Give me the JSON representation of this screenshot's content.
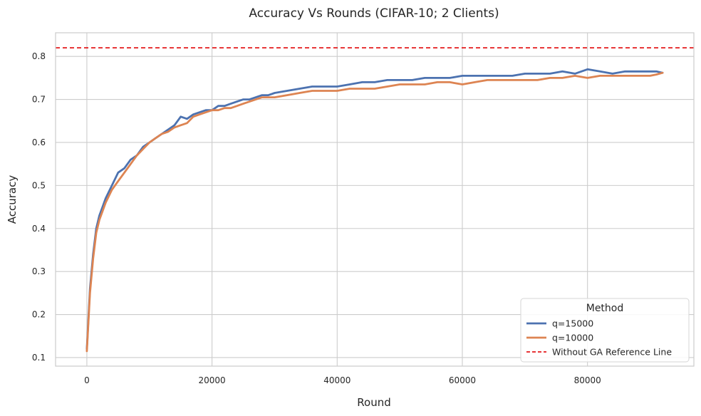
{
  "chart_data": {
    "type": "line",
    "title": "Accuracy Vs Rounds (CIFAR-10; 2 Clients)",
    "xlabel": "Round",
    "ylabel": "Accuracy",
    "xlim": [
      -5000,
      97000
    ],
    "ylim": [
      0.08,
      0.855
    ],
    "xticks": [
      0,
      20000,
      40000,
      60000,
      80000
    ],
    "yticks": [
      0.1,
      0.2,
      0.3,
      0.4,
      0.5,
      0.6,
      0.7,
      0.8
    ],
    "xtick_labels": [
      "0",
      "20000",
      "40000",
      "60000",
      "80000"
    ],
    "ytick_labels": [
      "0.1",
      "0.2",
      "0.3",
      "0.4",
      "0.5",
      "0.6",
      "0.7",
      "0.8"
    ],
    "grid": true,
    "legend": {
      "title": "Method",
      "position": "lower-right"
    },
    "reference_line": {
      "name": "Without GA Reference Line",
      "y": 0.82,
      "color": "#e41a1c",
      "style": "dashed"
    },
    "series": [
      {
        "name": "q=15000",
        "color": "#4c72b0",
        "x": [
          0,
          500,
          1000,
          1500,
          2000,
          2500,
          3000,
          4000,
          5000,
          6000,
          7000,
          8000,
          9000,
          10000,
          11000,
          12000,
          13000,
          14000,
          15000,
          16000,
          17000,
          18000,
          19000,
          20000,
          21000,
          22000,
          23000,
          24000,
          25000,
          26000,
          27000,
          28000,
          29000,
          30000,
          32000,
          34000,
          36000,
          38000,
          40000,
          42000,
          44000,
          46000,
          48000,
          50000,
          52000,
          54000,
          56000,
          58000,
          60000,
          62000,
          64000,
          66000,
          68000,
          70000,
          72000,
          74000,
          76000,
          78000,
          80000,
          82000,
          84000,
          86000,
          88000,
          90000,
          91000,
          92000
        ],
        "values": [
          0.12,
          0.26,
          0.34,
          0.4,
          0.43,
          0.45,
          0.47,
          0.5,
          0.53,
          0.54,
          0.56,
          0.57,
          0.59,
          0.6,
          0.61,
          0.62,
          0.63,
          0.64,
          0.66,
          0.655,
          0.665,
          0.67,
          0.675,
          0.675,
          0.685,
          0.685,
          0.69,
          0.695,
          0.7,
          0.7,
          0.705,
          0.71,
          0.71,
          0.715,
          0.72,
          0.725,
          0.73,
          0.73,
          0.73,
          0.735,
          0.74,
          0.74,
          0.745,
          0.745,
          0.745,
          0.75,
          0.75,
          0.75,
          0.755,
          0.755,
          0.755,
          0.755,
          0.755,
          0.76,
          0.76,
          0.76,
          0.765,
          0.76,
          0.77,
          0.765,
          0.76,
          0.765,
          0.765,
          0.765,
          0.765,
          0.762
        ]
      },
      {
        "name": "q=10000",
        "color": "#dd8452",
        "x": [
          0,
          500,
          1000,
          1500,
          2000,
          2500,
          3000,
          4000,
          5000,
          6000,
          7000,
          8000,
          9000,
          10000,
          11000,
          12000,
          13000,
          14000,
          15000,
          16000,
          17000,
          18000,
          19000,
          20000,
          21000,
          22000,
          23000,
          24000,
          25000,
          26000,
          27000,
          28000,
          29000,
          30000,
          32000,
          34000,
          36000,
          38000,
          40000,
          42000,
          44000,
          46000,
          48000,
          50000,
          52000,
          54000,
          56000,
          58000,
          60000,
          62000,
          64000,
          66000,
          68000,
          70000,
          72000,
          74000,
          76000,
          78000,
          80000,
          82000,
          84000,
          86000,
          88000,
          90000,
          91000,
          92000
        ],
        "values": [
          0.115,
          0.25,
          0.33,
          0.39,
          0.42,
          0.44,
          0.46,
          0.49,
          0.51,
          0.53,
          0.55,
          0.57,
          0.585,
          0.6,
          0.61,
          0.62,
          0.625,
          0.635,
          0.64,
          0.645,
          0.66,
          0.665,
          0.67,
          0.675,
          0.675,
          0.68,
          0.68,
          0.685,
          0.69,
          0.695,
          0.7,
          0.705,
          0.705,
          0.705,
          0.71,
          0.715,
          0.72,
          0.72,
          0.72,
          0.725,
          0.725,
          0.725,
          0.73,
          0.735,
          0.735,
          0.735,
          0.74,
          0.74,
          0.735,
          0.74,
          0.745,
          0.745,
          0.745,
          0.745,
          0.745,
          0.75,
          0.75,
          0.755,
          0.75,
          0.755,
          0.755,
          0.755,
          0.755,
          0.755,
          0.758,
          0.762
        ]
      }
    ]
  }
}
